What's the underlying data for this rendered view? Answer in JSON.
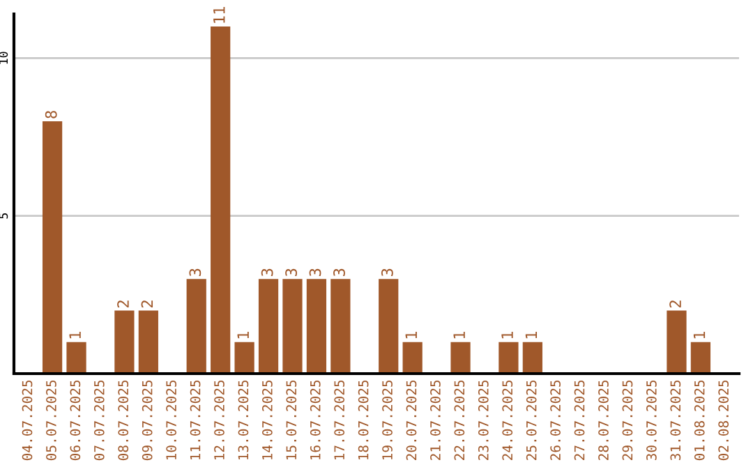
{
  "chart_data": {
    "type": "bar",
    "categories": [
      "04.07.2025",
      "05.07.2025",
      "06.07.2025",
      "07.07.2025",
      "08.07.2025",
      "09.07.2025",
      "10.07.2025",
      "11.07.2025",
      "12.07.2025",
      "13.07.2025",
      "14.07.2025",
      "15.07.2025",
      "16.07.2025",
      "17.07.2025",
      "18.07.2025",
      "19.07.2025",
      "20.07.2025",
      "21.07.2025",
      "22.07.2025",
      "23.07.2025",
      "24.07.2025",
      "25.07.2025",
      "26.07.2025",
      "27.07.2025",
      "28.07.2025",
      "29.07.2025",
      "30.07.2025",
      "31.07.2025",
      "01.08.2025",
      "02.08.2025"
    ],
    "values": [
      0,
      8,
      1,
      0,
      2,
      2,
      0,
      3,
      11,
      1,
      3,
      3,
      3,
      3,
      0,
      3,
      1,
      0,
      1,
      0,
      1,
      1,
      0,
      0,
      0,
      0,
      0,
      2,
      1,
      0
    ],
    "value_labels": [
      null,
      "8",
      "1",
      null,
      "2",
      "2",
      null,
      "3",
      "11",
      "1",
      "3",
      "3",
      "3",
      "3",
      null,
      "3",
      "1",
      null,
      "1",
      null,
      "1",
      "1",
      null,
      null,
      null,
      null,
      null,
      "2",
      "1",
      null
    ],
    "color": "#a0582a",
    "ylim": [
      0,
      11.4
    ],
    "yticks": [
      5,
      10
    ],
    "grid": "y"
  }
}
